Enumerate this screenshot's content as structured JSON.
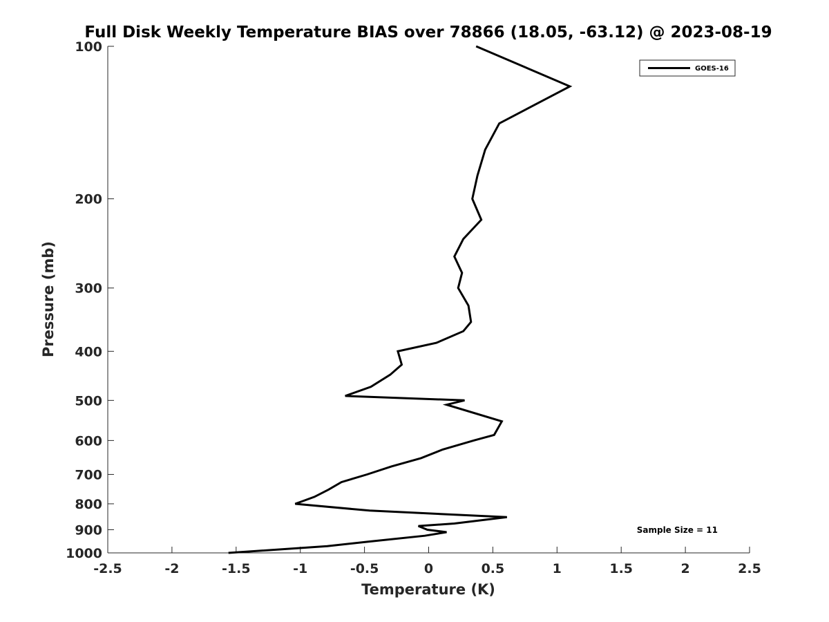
{
  "chart_data": {
    "type": "line",
    "title": "Full Disk Weekly Temperature BIAS over 78866 (18.05, -63.12) @ 2023-08-19",
    "xlabel": "Temperature (K)",
    "ylabel": "Pressure (mb)",
    "xlim": [
      -2.5,
      2.5
    ],
    "ylim": [
      1000,
      100
    ],
    "y_scale": "log",
    "y_reversed": true,
    "grid": false,
    "legend_placement": "top-right",
    "x_ticks": [
      "-2.5",
      "-2",
      "-1.5",
      "-1",
      "-0.5",
      "0",
      "0.5",
      "1",
      "1.5",
      "2",
      "2.5"
    ],
    "x_tick_values": [
      -2.5,
      -2,
      -1.5,
      -1,
      -0.5,
      0,
      0.5,
      1,
      1.5,
      2,
      2.5
    ],
    "y_ticks": [
      "100",
      "200",
      "300",
      "400",
      "500",
      "600",
      "700",
      "800",
      "900",
      "1000"
    ],
    "y_tick_values": [
      100,
      200,
      300,
      400,
      500,
      600,
      700,
      800,
      900,
      1000
    ],
    "annotation": "Sample Size = 11",
    "series": [
      {
        "name": "GOES-16",
        "color": "#000000",
        "points": [
          {
            "x": 0.37,
            "p": 100
          },
          {
            "x": 1.1,
            "p": 120
          },
          {
            "x": 0.55,
            "p": 142
          },
          {
            "x": 0.44,
            "p": 160
          },
          {
            "x": 0.38,
            "p": 180
          },
          {
            "x": 0.34,
            "p": 200
          },
          {
            "x": 0.41,
            "p": 220
          },
          {
            "x": 0.27,
            "p": 240
          },
          {
            "x": 0.2,
            "p": 260
          },
          {
            "x": 0.26,
            "p": 280
          },
          {
            "x": 0.23,
            "p": 300
          },
          {
            "x": 0.31,
            "p": 325
          },
          {
            "x": 0.33,
            "p": 350
          },
          {
            "x": 0.27,
            "p": 365
          },
          {
            "x": 0.06,
            "p": 385
          },
          {
            "x": -0.24,
            "p": 400
          },
          {
            "x": -0.21,
            "p": 425
          },
          {
            "x": -0.3,
            "p": 445
          },
          {
            "x": -0.45,
            "p": 470
          },
          {
            "x": -0.65,
            "p": 490
          },
          {
            "x": 0.28,
            "p": 500
          },
          {
            "x": 0.14,
            "p": 510
          },
          {
            "x": 0.57,
            "p": 550
          },
          {
            "x": 0.51,
            "p": 585
          },
          {
            "x": 0.35,
            "p": 600
          },
          {
            "x": 0.11,
            "p": 625
          },
          {
            "x": -0.06,
            "p": 650
          },
          {
            "x": -0.29,
            "p": 675
          },
          {
            "x": -0.48,
            "p": 700
          },
          {
            "x": -0.68,
            "p": 725
          },
          {
            "x": -0.78,
            "p": 750
          },
          {
            "x": -0.89,
            "p": 775
          },
          {
            "x": -0.98,
            "p": 790
          },
          {
            "x": -1.04,
            "p": 800
          },
          {
            "x": -0.46,
            "p": 825
          },
          {
            "x": 0.61,
            "p": 850
          },
          {
            "x": 0.2,
            "p": 875
          },
          {
            "x": -0.08,
            "p": 885
          },
          {
            "x": -0.01,
            "p": 900
          },
          {
            "x": 0.14,
            "p": 910
          },
          {
            "x": -0.03,
            "p": 925
          },
          {
            "x": -0.47,
            "p": 950
          },
          {
            "x": -0.79,
            "p": 970
          },
          {
            "x": -1.56,
            "p": 1000
          }
        ]
      }
    ]
  }
}
